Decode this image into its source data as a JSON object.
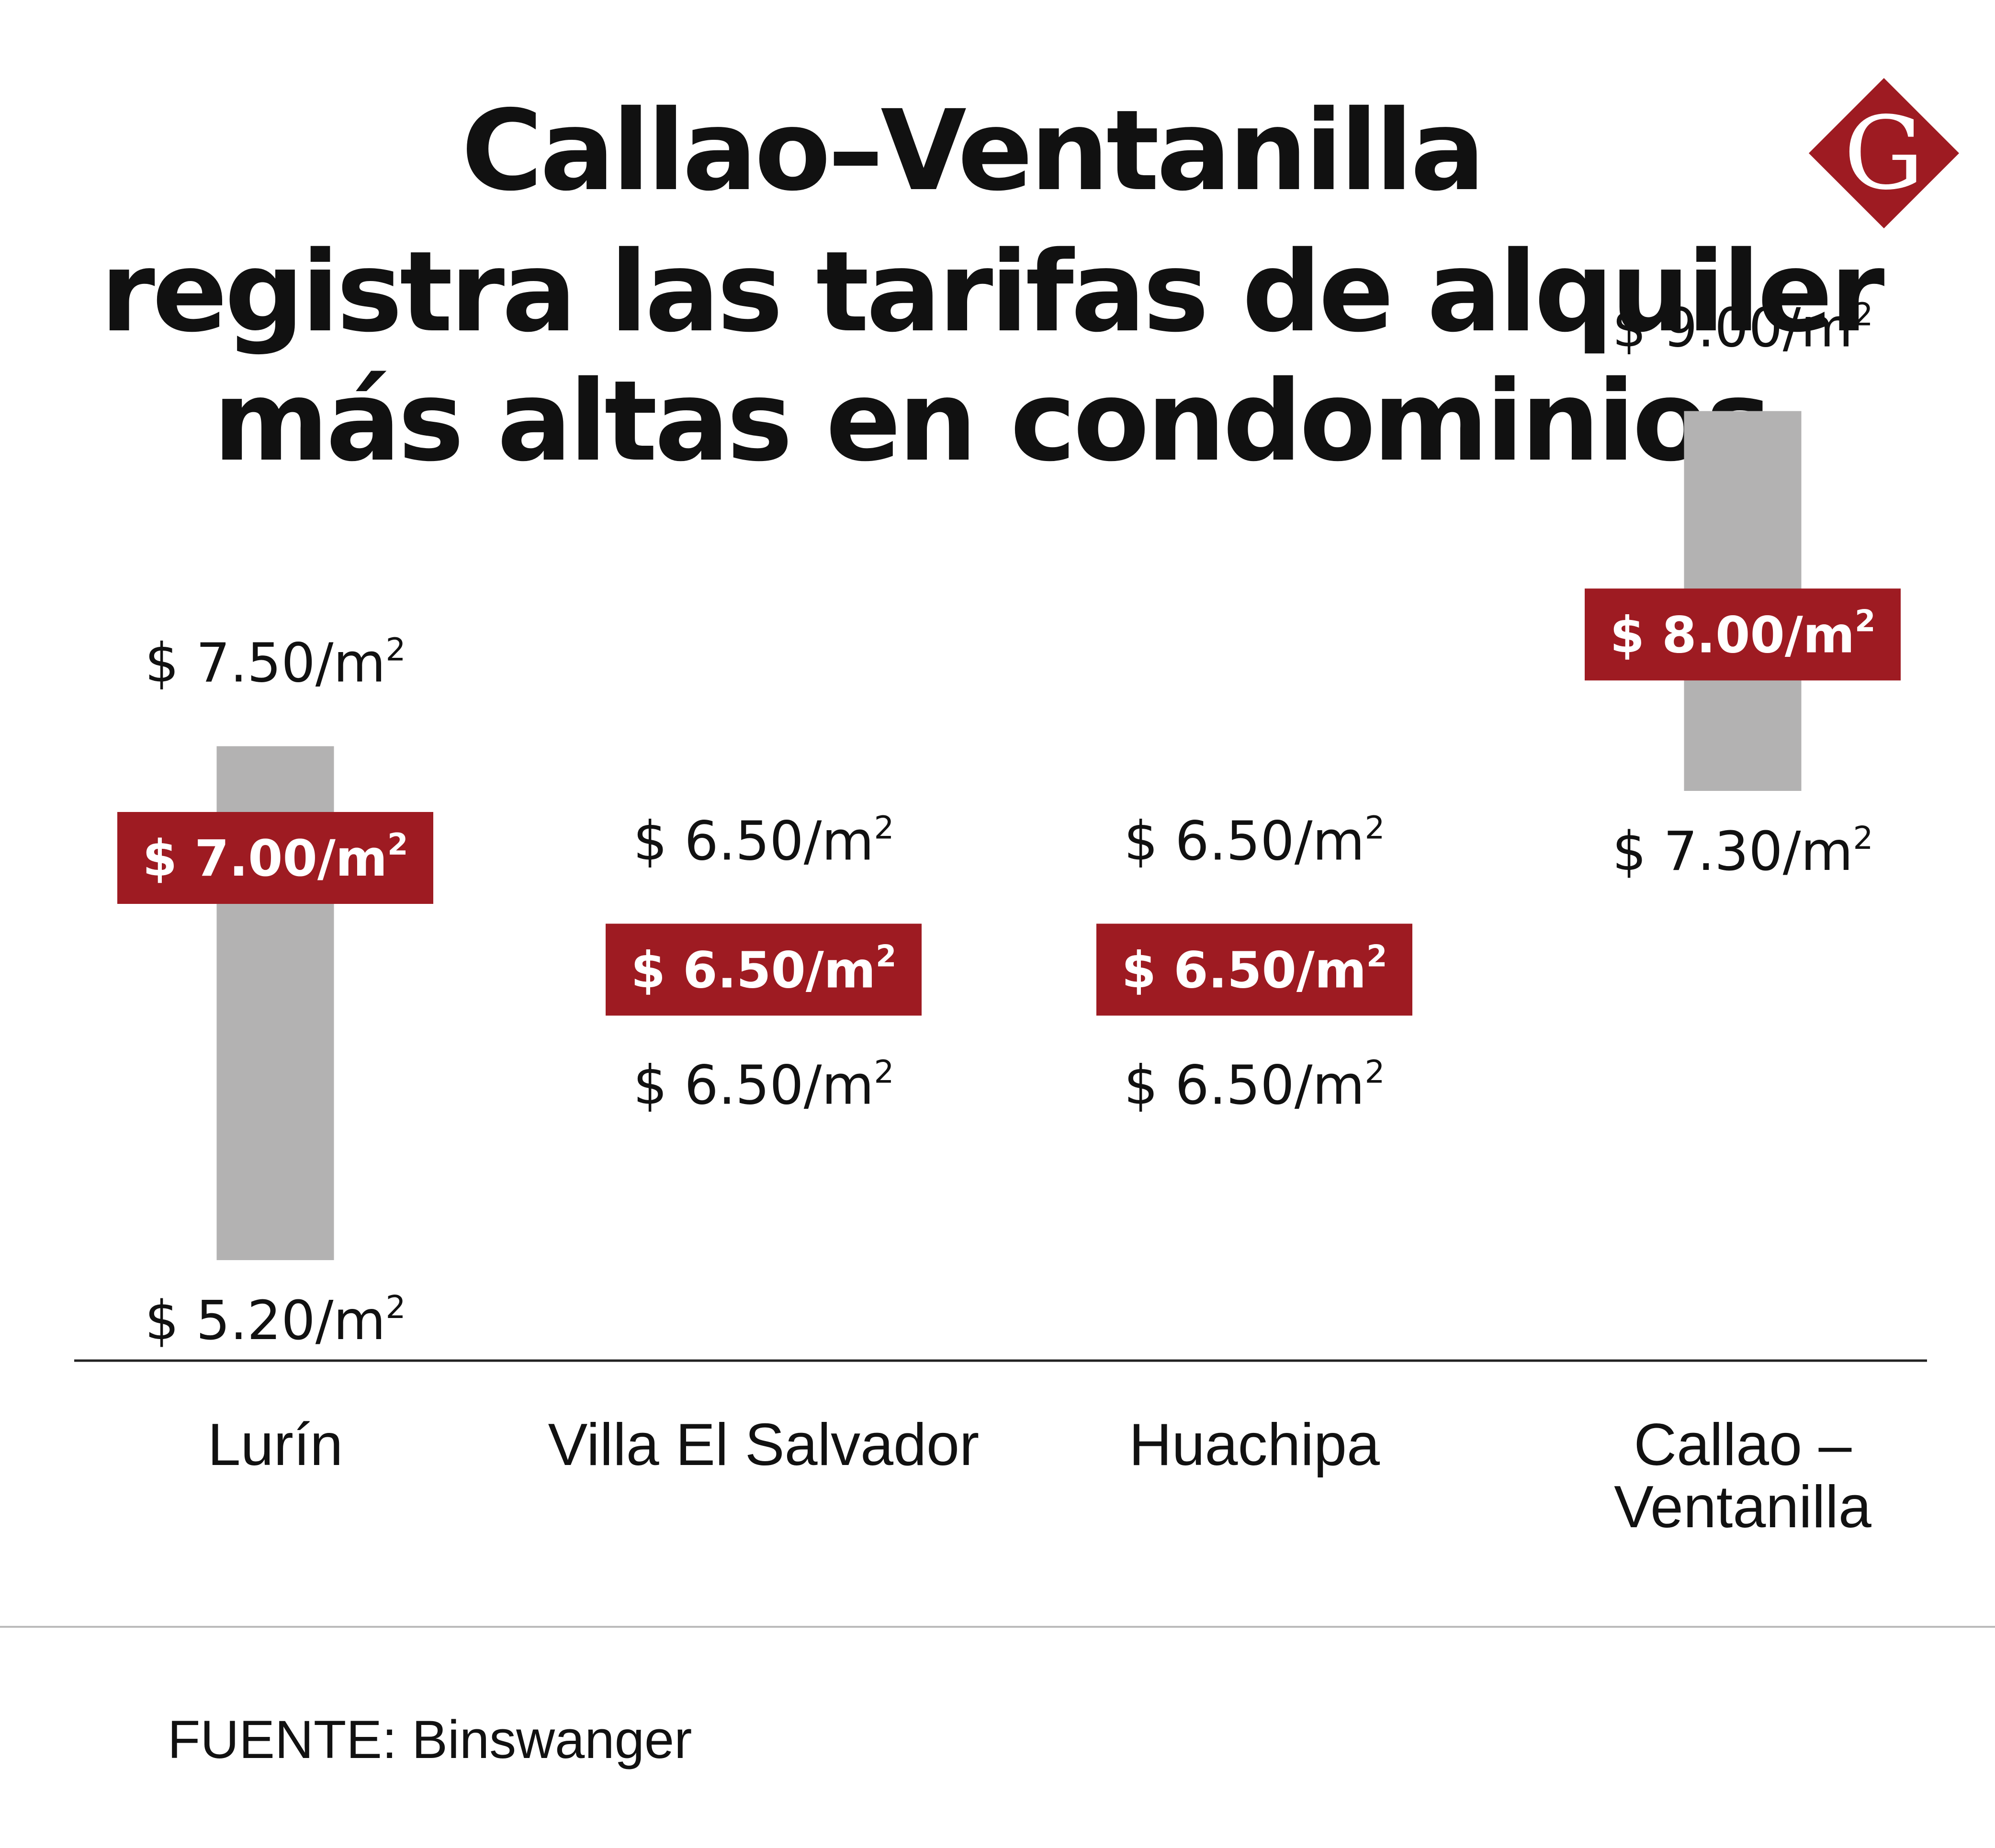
{
  "title_lines": [
    "Callao–Ventanilla",
    "registra las tarifas de alquiler",
    "más altas en condominios"
  ],
  "logo": {
    "letter": "G",
    "color": "#9E1B22"
  },
  "source": "FUENTE: Binswanger",
  "colors": {
    "range_bar": "#B3B2B2",
    "highlight": "#9E1B22",
    "text": "#111111",
    "axis": "#222222"
  },
  "chart_data": {
    "type": "bar",
    "categories": [
      "Lurín",
      "Villa El Salvador",
      "Huachipa",
      "Callao – Ventanilla"
    ],
    "category_lines": [
      [
        "Lurín"
      ],
      [
        "Villa El Salvador"
      ],
      [
        "Huachipa"
      ],
      [
        "Callao –",
        "Ventanilla"
      ]
    ],
    "unit_prefix": "$",
    "unit_suffix": "/m",
    "unit_superscript": "2",
    "series": [
      {
        "name": "",
        "role": "min",
        "values": [
          5.2,
          6.5,
          6.5,
          7.3
        ]
      },
      {
        "name": "",
        "role": "max",
        "values": [
          7.5,
          6.5,
          6.5,
          9.0
        ]
      },
      {
        "name": "",
        "role": "average",
        "values": [
          7.0,
          6.5,
          6.5,
          8.0
        ]
      }
    ],
    "min_labels": [
      "5.20",
      "6.50",
      "6.50",
      "7.30"
    ],
    "max_labels": [
      "7.50",
      "6.50",
      "6.50",
      "9.00"
    ],
    "avg_labels": [
      "7.00",
      "6.50",
      "6.50",
      "8.00"
    ],
    "ylim": [
      5.2,
      9.0
    ],
    "grid": false,
    "legend": "none"
  }
}
